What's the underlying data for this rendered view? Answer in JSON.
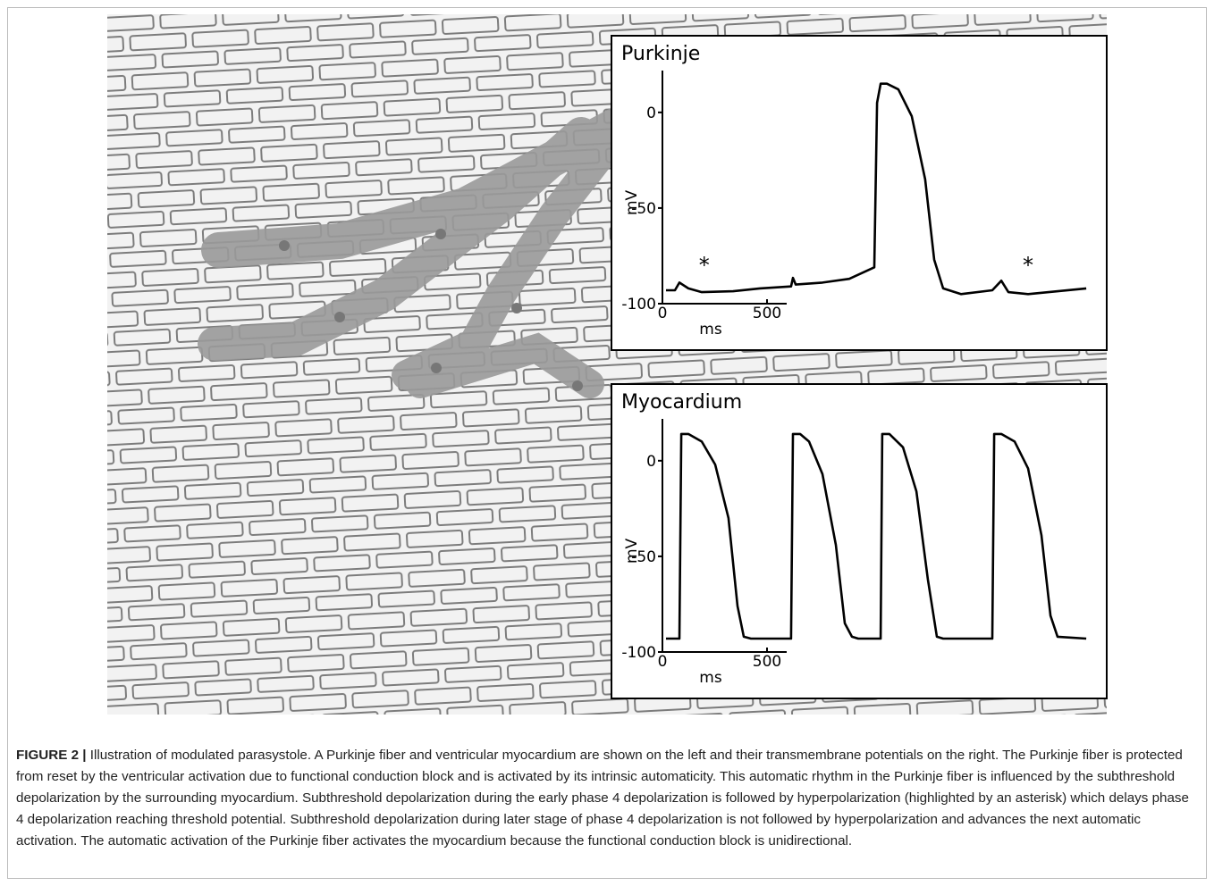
{
  "chart_data": [
    {
      "type": "line",
      "title": "Purkinje",
      "x_label": "ms",
      "y_label": "mV",
      "x": [
        17,
        60,
        81,
        124,
        188,
        338,
        466,
        615,
        624,
        637,
        765,
        893,
        1013,
        1026,
        1043,
        1073,
        1128,
        1192,
        1256,
        1299,
        1342,
        1427,
        1577,
        1620,
        1654,
        1748,
        2026
      ],
      "values": [
        -93,
        -93,
        -89,
        -92,
        -94,
        -93.5,
        -92,
        -91,
        -86.5,
        -90,
        -89,
        -87,
        -81,
        5,
        15,
        15,
        12,
        -2,
        -35,
        -77,
        -92,
        -95,
        -93,
        -88,
        -94,
        -95,
        -92
      ],
      "color": "#000000",
      "xlim": [
        0,
        2030
      ],
      "xticks": [
        0,
        500
      ],
      "ylim": [
        -100,
        20
      ],
      "yticks": [
        0,
        -50,
        -100
      ],
      "annotations": [
        {
          "text": "*",
          "x": 200,
          "y": -80
        },
        {
          "text": "*",
          "x": 1748,
          "y": -80
        }
      ]
    },
    {
      "type": "line",
      "title": "Myocardium",
      "x_label": "ms",
      "y_label": "mV",
      "x": [
        17,
        81,
        90,
        124,
        188,
        252,
        316,
        359,
        389,
        423,
        615,
        624,
        658,
        701,
        765,
        829,
        872,
        906,
        936,
        1043,
        1051,
        1085,
        1150,
        1214,
        1269,
        1312,
        1342,
        1577,
        1586,
        1620,
        1684,
        1748,
        1812,
        1855,
        1889,
        2026
      ],
      "values": [
        -93,
        -93,
        14,
        14,
        10,
        -2,
        -30,
        -76,
        -92,
        -93,
        -93,
        14,
        14,
        10,
        -7,
        -44,
        -85,
        -92,
        -93,
        -93,
        14,
        14,
        7,
        -16,
        -62,
        -92,
        -93,
        -93,
        14,
        14,
        10,
        -4,
        -39,
        -81,
        -92,
        -93
      ],
      "color": "#000000",
      "xlim": [
        0,
        2030
      ],
      "xticks": [
        0,
        500
      ],
      "ylim": [
        -100,
        20
      ],
      "yticks": [
        0,
        -50,
        -100
      ]
    }
  ],
  "caption": {
    "label": "FIGURE 2 |",
    "text": "Illustration of modulated parasystole. A Purkinje fiber and ventricular myocardium are shown on the left and their transmembrane potentials on the right. The Purkinje fiber is protected from reset by the ventricular activation due to functional conduction block and is activated by its intrinsic automaticity. This automatic rhythm in the Purkinje fiber is influenced by the subthreshold depolarization by the surrounding myocardium. Subthreshold depolarization during the early phase 4 depolarization is followed by hyperpolarization (highlighted by an asterisk) which delays phase 4 depolarization reaching threshold potential. Subthreshold depolarization during later stage of phase 4 depolarization is not followed by hyperpolarization and advances the next automatic activation. The automatic activation of the Purkinje fiber activates the myocardium because the functional conduction block is unidirectional."
  }
}
